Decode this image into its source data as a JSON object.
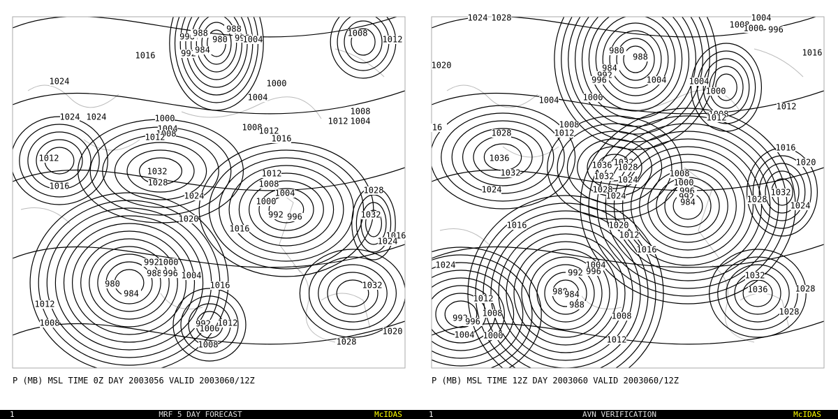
{
  "panels": [
    {
      "caption": "P (MB) MSL TIME 0Z DAY 2003056 VALID 2003060/12Z",
      "footer": {
        "frame": "1",
        "title": "MRF 5 DAY FORECAST",
        "brand": "McIDAS"
      },
      "contour_labels": [
        "1024",
        "1016",
        "996",
        "988",
        "992",
        "984",
        "980",
        "988",
        "996",
        "1004",
        "1008",
        "1012",
        "1000",
        "1004",
        "1024",
        "1024",
        "1000",
        "1004",
        "1008",
        "1012",
        "1008",
        "1012",
        "1016",
        "1008",
        "1012",
        "1004",
        "1012",
        "1016",
        "1032",
        "1028",
        "1024",
        "1012",
        "1008",
        "1004",
        "1000",
        "992",
        "996",
        "1028",
        "1032",
        "1016",
        "1024",
        "1020",
        "1016",
        "992",
        "1000",
        "988",
        "996",
        "1004",
        "980",
        "984",
        "1016",
        "1032",
        "1012",
        "1008",
        "992",
        "1000",
        "1012",
        "1008",
        "1020",
        "1028"
      ]
    },
    {
      "caption": "P (MB) MSL TIME 12Z DAY 2003060 VALID 2003060/12Z",
      "footer": {
        "frame": "1",
        "title": "AVN VERIFICATION",
        "brand": "McIDAS"
      },
      "contour_labels": [
        "1024",
        "1028",
        "1004",
        "1008",
        "1000",
        "996",
        "1016",
        "1020",
        "980",
        "988",
        "984",
        "992",
        "996",
        "1000",
        "1004",
        "1004",
        "1008",
        "1012",
        "1004",
        "1000",
        "1012",
        "1008",
        "1012",
        "16",
        "1028",
        "1036",
        "1032",
        "1024",
        "1036",
        "1032",
        "1028",
        "1032",
        "1024",
        "1028",
        "1024",
        "1008",
        "1000",
        "996",
        "992",
        "984",
        "1016",
        "1020",
        "1032",
        "1028",
        "1024",
        "1016",
        "1020",
        "1012",
        "1016",
        "1004",
        "992",
        "996",
        "988",
        "984",
        "988",
        "1024",
        "1032",
        "1036",
        "1028",
        "1028",
        "1012",
        "1008",
        "992",
        "996",
        "1004",
        "1000",
        "1008",
        "1012"
      ]
    }
  ]
}
